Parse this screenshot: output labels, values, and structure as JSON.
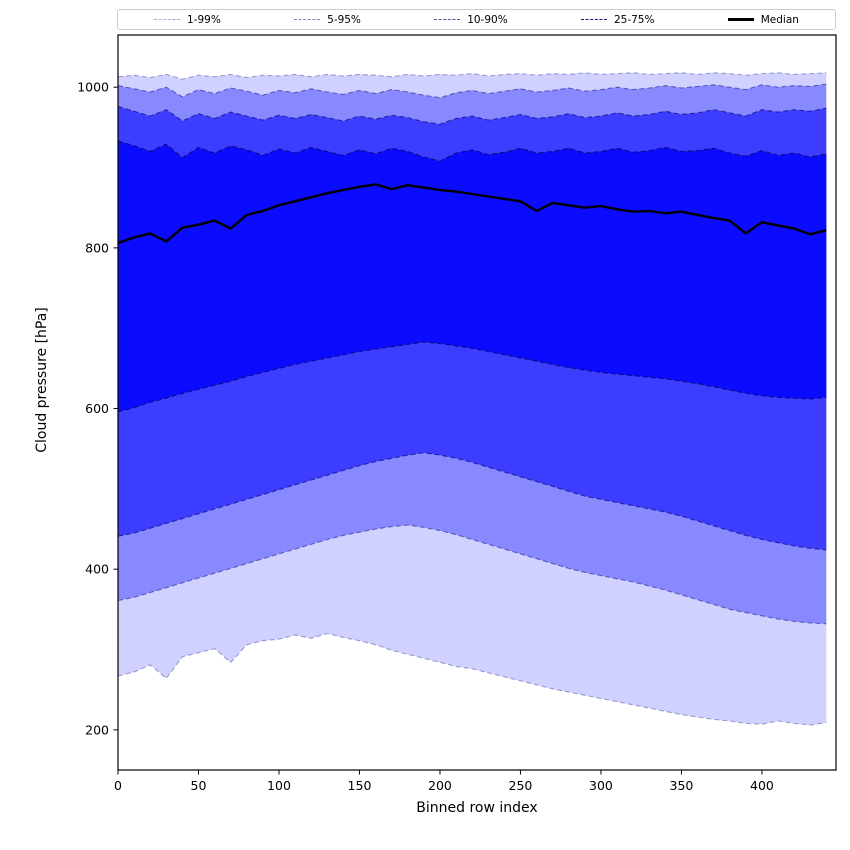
{
  "chart_data": {
    "type": "area",
    "title": "",
    "xlabel": "Binned row index",
    "ylabel": "Cloud pressure [hPa]",
    "xlim": [
      0,
      446
    ],
    "ylim": [
      150,
      1065
    ],
    "xticks": [
      0,
      50,
      100,
      150,
      200,
      250,
      300,
      350,
      400
    ],
    "yticks": [
      200,
      400,
      600,
      800,
      1000
    ],
    "grid": false,
    "legend_position": "top-outside-horizontal",
    "band_color": "#0000ff",
    "line_color": "#0a0a78",
    "x": [
      0,
      10,
      20,
      30,
      40,
      50,
      60,
      70,
      80,
      90,
      100,
      110,
      120,
      130,
      140,
      150,
      160,
      170,
      180,
      190,
      200,
      210,
      220,
      230,
      240,
      250,
      260,
      270,
      280,
      290,
      300,
      310,
      320,
      330,
      340,
      350,
      360,
      370,
      380,
      390,
      400,
      410,
      420,
      430,
      440
    ],
    "series": {
      "p99": [
        1013,
        1015,
        1012,
        1016,
        1010,
        1015,
        1013,
        1016,
        1012,
        1015,
        1014,
        1016,
        1013,
        1016,
        1014,
        1016,
        1015,
        1013,
        1016,
        1014,
        1016,
        1015,
        1017,
        1014,
        1016,
        1017,
        1015,
        1017,
        1016,
        1018,
        1016,
        1017,
        1018,
        1016,
        1017,
        1018,
        1016,
        1018,
        1017,
        1015,
        1017,
        1018,
        1016,
        1017,
        1018
      ],
      "p95": [
        1002,
        998,
        994,
        1000,
        988,
        997,
        992,
        999,
        995,
        990,
        996,
        993,
        998,
        994,
        991,
        996,
        992,
        997,
        994,
        990,
        987,
        993,
        996,
        992,
        995,
        998,
        994,
        996,
        999,
        995,
        997,
        1000,
        997,
        999,
        1002,
        999,
        1001,
        1003,
        1000,
        997,
        1003,
        1000,
        1002,
        1001,
        1004
      ],
      "p90": [
        976,
        970,
        964,
        972,
        958,
        967,
        961,
        969,
        964,
        959,
        965,
        961,
        966,
        962,
        958,
        964,
        960,
        965,
        962,
        957,
        954,
        961,
        964,
        959,
        962,
        966,
        961,
        963,
        967,
        962,
        964,
        968,
        964,
        966,
        970,
        966,
        968,
        972,
        968,
        964,
        972,
        969,
        972,
        970,
        974
      ],
      "p75": [
        933,
        927,
        920,
        929,
        912,
        925,
        918,
        927,
        922,
        915,
        923,
        918,
        925,
        920,
        915,
        922,
        917,
        924,
        920,
        913,
        908,
        918,
        922,
        916,
        919,
        924,
        918,
        920,
        924,
        918,
        920,
        924,
        919,
        921,
        925,
        920,
        921,
        924,
        918,
        914,
        921,
        915,
        918,
        913,
        917
      ],
      "median": [
        806,
        813,
        818,
        808,
        825,
        829,
        834,
        824,
        841,
        846,
        853,
        858,
        863,
        868,
        872,
        876,
        879,
        873,
        878,
        875,
        872,
        870,
        867,
        864,
        861,
        858,
        846,
        856,
        853,
        850,
        852,
        848,
        845,
        846,
        843,
        845,
        841,
        837,
        834,
        818,
        832,
        828,
        824,
        817,
        822
      ],
      "p25": [
        596,
        601,
        608,
        613,
        619,
        624,
        629,
        634,
        640,
        645,
        650,
        655,
        659,
        663,
        667,
        671,
        674,
        677,
        680,
        683,
        681,
        678,
        675,
        671,
        667,
        663,
        659,
        655,
        651,
        648,
        645,
        643,
        641,
        639,
        637,
        634,
        631,
        627,
        623,
        619,
        616,
        614,
        613,
        612,
        614
      ],
      "p10": [
        441,
        445,
        451,
        457,
        463,
        469,
        475,
        481,
        487,
        493,
        499,
        505,
        511,
        517,
        523,
        529,
        534,
        538,
        542,
        545,
        542,
        538,
        533,
        527,
        521,
        515,
        509,
        503,
        497,
        491,
        487,
        483,
        479,
        475,
        471,
        466,
        460,
        454,
        448,
        442,
        437,
        433,
        429,
        426,
        424
      ],
      "p05": [
        361,
        365,
        371,
        377,
        383,
        389,
        395,
        401,
        407,
        413,
        419,
        425,
        431,
        437,
        442,
        446,
        450,
        453,
        455,
        452,
        448,
        443,
        437,
        431,
        425,
        419,
        413,
        407,
        401,
        396,
        392,
        388,
        384,
        379,
        374,
        368,
        362,
        356,
        350,
        346,
        342,
        338,
        335,
        333,
        332
      ],
      "p01": [
        267,
        272,
        281,
        264,
        291,
        296,
        301,
        284,
        306,
        311,
        313,
        318,
        314,
        320,
        315,
        311,
        306,
        299,
        294,
        289,
        284,
        279,
        276,
        271,
        266,
        261,
        256,
        251,
        247,
        243,
        239,
        235,
        231,
        227,
        223,
        219,
        216,
        213,
        211,
        208,
        207,
        211,
        208,
        206,
        209
      ]
    },
    "bands": [
      {
        "label": "1-99%",
        "upper": "p99",
        "lower": "p01",
        "fill_alpha": 0.18,
        "line_alpha": 0.35
      },
      {
        "label": "5-95%",
        "upper": "p95",
        "lower": "p05",
        "fill_alpha": 0.35,
        "line_alpha": 0.5
      },
      {
        "label": "10-90%",
        "upper": "p90",
        "lower": "p10",
        "fill_alpha": 0.55,
        "line_alpha": 0.7
      },
      {
        "label": "25-75%",
        "upper": "p75",
        "lower": "p25",
        "fill_alpha": 0.82,
        "line_alpha": 0.95
      }
    ],
    "median": {
      "label": "Median",
      "color": "#000000",
      "width": 2.4
    }
  }
}
